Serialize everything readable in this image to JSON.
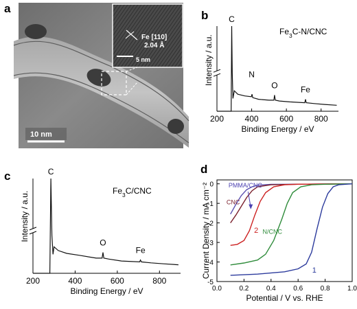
{
  "panels": {
    "a": {
      "letter": "a",
      "inset_label": "Fe [110]",
      "inset_spacing": "2.04 Å",
      "inset_scale": "5 nm",
      "scale_bar": "10 nm"
    }
  },
  "chart_data": [
    {
      "panel": "b",
      "type": "line",
      "title": "Fe3C-N/CNC",
      "xlabel": "Binding Energy / eV",
      "ylabel": "Intensity / a.u.",
      "xlim": [
        200,
        900
      ],
      "xticks": [
        200,
        400,
        600,
        800
      ],
      "y_axis_break": true,
      "annotations": [
        {
          "text": "C",
          "x": 285
        },
        {
          "text": "N",
          "x": 400
        },
        {
          "text": "O",
          "x": 532
        },
        {
          "text": "Fe",
          "x": 710
        }
      ],
      "series": [
        {
          "x": [
            200,
            282,
            285,
            288,
            292,
            300,
            320,
            360,
            398,
            402,
            406,
            440,
            500,
            528,
            532,
            536,
            560,
            620,
            706,
            710,
            714,
            760,
            820,
            890
          ],
          "y": [
            0,
            0,
            100,
            45,
            15,
            24,
            20,
            18,
            17,
            20,
            16,
            14,
            13,
            13,
            19,
            13,
            12,
            11,
            10,
            14,
            10,
            9,
            8,
            7
          ]
        }
      ]
    },
    {
      "panel": "c",
      "type": "line",
      "title": "Fe3C/CNC",
      "xlabel": "Binding Energy / eV",
      "ylabel": "Intensity / a.u.",
      "xlim": [
        200,
        900
      ],
      "xticks": [
        200,
        400,
        600,
        800
      ],
      "y_axis_break": true,
      "annotations": [
        {
          "text": "C",
          "x": 285
        },
        {
          "text": "O",
          "x": 532
        },
        {
          "text": "Fe",
          "x": 710
        }
      ],
      "series": [
        {
          "x": [
            200,
            280,
            285,
            290,
            295,
            300,
            320,
            360,
            420,
            500,
            528,
            532,
            536,
            560,
            620,
            706,
            710,
            714,
            760,
            820,
            890
          ],
          "y": [
            0,
            0,
            100,
            40,
            20,
            28,
            24,
            21,
            19,
            16,
            16,
            22,
            16,
            15,
            13,
            12,
            14,
            12,
            11,
            10,
            9
          ]
        }
      ]
    },
    {
      "panel": "d",
      "type": "line",
      "xlabel": "Potential / V vs. RHE",
      "ylabel": "Current Density / mA cm⁻²",
      "xlim": [
        0.0,
        1.0
      ],
      "ylim": [
        -5,
        0.2
      ],
      "xticks": [
        0.0,
        0.2,
        0.4,
        0.6,
        0.8,
        1.0
      ],
      "yticks": [
        0,
        -1,
        -2,
        -3,
        -4,
        -5
      ],
      "annotations": [
        {
          "text": "1",
          "x": 0.72,
          "y": -4.55
        },
        {
          "text": "2",
          "x": 0.29,
          "y": -2.5
        }
      ],
      "series": [
        {
          "name": "PMMA/CNC",
          "color": "#5a4fb0",
          "x": [
            0.1,
            0.14,
            0.18,
            0.22,
            0.26,
            0.3,
            0.4,
            0.6,
            0.8,
            1.0
          ],
          "y": [
            -1.55,
            -1.05,
            -0.6,
            -0.3,
            -0.15,
            -0.07,
            -0.03,
            -0.02,
            -0.01,
            0
          ]
        },
        {
          "name": "CNC",
          "color": "#7a1f2b",
          "x": [
            0.1,
            0.14,
            0.18,
            0.22,
            0.26,
            0.3,
            0.4,
            0.6,
            0.8,
            1.0
          ],
          "y": [
            -2.0,
            -1.6,
            -1.15,
            -0.7,
            -0.35,
            -0.15,
            -0.05,
            -0.02,
            -0.01,
            0
          ]
        },
        {
          "name": "2",
          "color": "#cc2020",
          "x": [
            0.1,
            0.15,
            0.2,
            0.24,
            0.28,
            0.32,
            0.36,
            0.42,
            0.5,
            0.6,
            0.8,
            1.0
          ],
          "y": [
            -3.15,
            -3.1,
            -2.9,
            -2.4,
            -1.6,
            -0.9,
            -0.45,
            -0.15,
            -0.05,
            -0.02,
            -0.01,
            0
          ]
        },
        {
          "name": "N/CNC",
          "color": "#2e8b3a",
          "x": [
            0.1,
            0.2,
            0.3,
            0.36,
            0.42,
            0.48,
            0.52,
            0.56,
            0.62,
            0.7,
            0.8,
            1.0
          ],
          "y": [
            -4.15,
            -4.05,
            -3.9,
            -3.6,
            -2.9,
            -1.8,
            -1.0,
            -0.45,
            -0.15,
            -0.05,
            -0.02,
            0
          ]
        },
        {
          "name": "1",
          "color": "#2b3a9c",
          "x": [
            0.1,
            0.3,
            0.5,
            0.6,
            0.66,
            0.7,
            0.74,
            0.78,
            0.82,
            0.86,
            0.9,
            1.0
          ],
          "y": [
            -4.68,
            -4.62,
            -4.5,
            -4.35,
            -4.1,
            -3.5,
            -2.3,
            -1.2,
            -0.5,
            -0.15,
            -0.05,
            0
          ]
        }
      ]
    }
  ]
}
